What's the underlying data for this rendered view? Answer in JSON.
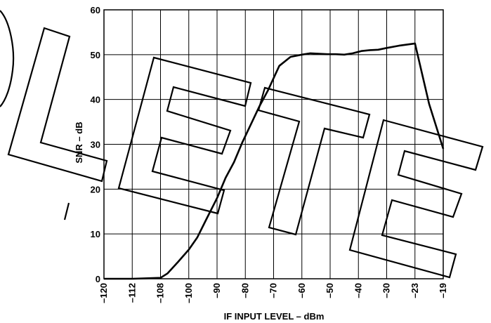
{
  "chart_data": {
    "type": "line",
    "xlabel": "IF INPUT LEVEL – dBm",
    "ylabel": "SNR – dB",
    "x_ticks": [
      -120,
      -112,
      -108,
      -100,
      -90,
      -80,
      -70,
      -60,
      -50,
      -40,
      -30,
      -23,
      -19
    ],
    "x_tick_labels": [
      "–120",
      "–112",
      "–108",
      "–100",
      "–90",
      "–80",
      "–70",
      "–60",
      "–50",
      "–40",
      "–30",
      "–23",
      "–19"
    ],
    "y_ticks": [
      0,
      10,
      20,
      30,
      40,
      50,
      60
    ],
    "y_tick_labels": [
      "0",
      "10",
      "20",
      "30",
      "40",
      "50",
      "60"
    ],
    "ylim": [
      0,
      60
    ],
    "grid": true,
    "series": [
      {
        "x": [
          -120,
          -112,
          -108,
          -106,
          -103,
          -100,
          -97,
          -94,
          -90,
          -87,
          -84,
          -81,
          -78,
          -75,
          -72,
          -68,
          -64,
          -60,
          -57,
          -54,
          -51,
          -48,
          -45,
          -42,
          -39,
          -36,
          -33,
          -30,
          -27,
          -23,
          -21,
          -19
        ],
        "y": [
          0,
          0,
          0.2,
          1.2,
          3.8,
          6.5,
          9.2,
          13,
          18,
          22.5,
          26,
          30.5,
          34.5,
          38.5,
          42,
          47.5,
          49.5,
          50,
          50.3,
          50.2,
          50.1,
          50.1,
          50,
          50.3,
          50.8,
          51,
          51.1,
          51.5,
          52,
          52.5,
          39,
          29
        ]
      }
    ]
  },
  "watermark_text": "DELETE"
}
